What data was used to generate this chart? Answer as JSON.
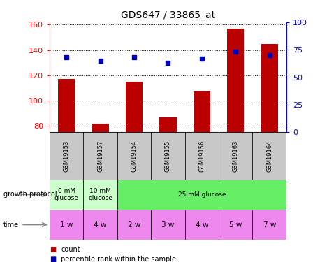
{
  "title": "GDS647 / 33865_at",
  "samples": [
    "GSM19153",
    "GSM19157",
    "GSM19154",
    "GSM19155",
    "GSM19156",
    "GSM19163",
    "GSM19164"
  ],
  "counts": [
    117,
    82,
    115,
    87,
    108,
    157,
    145
  ],
  "percentile_ranks": [
    68,
    65,
    68,
    63,
    67,
    73,
    70
  ],
  "ylim_left": [
    75,
    162
  ],
  "ylim_right": [
    0,
    100
  ],
  "yticks_left": [
    80,
    100,
    120,
    140,
    160
  ],
  "yticks_right": [
    0,
    25,
    50,
    75,
    100
  ],
  "bar_color": "#bb0000",
  "dot_color": "#0000bb",
  "growth_protocol_spans": [
    {
      "label": "0 mM\nglucose",
      "start": 0,
      "end": 1,
      "color": "#ccffcc"
    },
    {
      "label": "10 mM\nglucose",
      "start": 1,
      "end": 2,
      "color": "#ccffcc"
    },
    {
      "label": "25 mM glucose",
      "start": 2,
      "end": 7,
      "color": "#66ee66"
    }
  ],
  "time": [
    "1 w",
    "4 w",
    "2 w",
    "3 w",
    "4 w",
    "5 w",
    "7 w"
  ],
  "time_color": "#ee88ee",
  "sample_bg_color": "#c8c8c8",
  "legend_count_color": "#bb0000",
  "legend_pct_color": "#0000bb",
  "bar_width": 0.5
}
